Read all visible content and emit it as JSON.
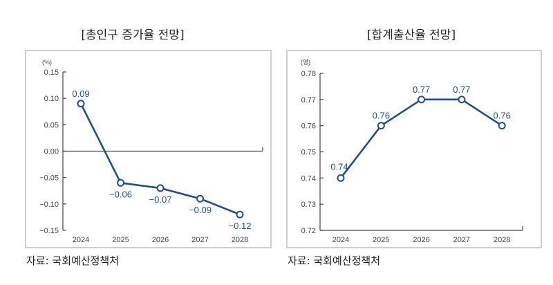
{
  "chart_data": [
    {
      "type": "line",
      "title": "[총인구 증가율 전망]",
      "unit_label": "(%)",
      "xlabel": "",
      "ylabel": "(%)",
      "categories": [
        "2024",
        "2025",
        "2026",
        "2027",
        "2028"
      ],
      "series": [
        {
          "name": "총인구 증가율",
          "values": [
            0.09,
            -0.06,
            -0.07,
            -0.09,
            -0.12
          ],
          "labels": [
            "0.09",
            "−0.06",
            "−0.07",
            "−0.09",
            "−0.12"
          ]
        }
      ],
      "ylim": [
        -0.15,
        0.15
      ],
      "yticks": [
        0.15,
        0.1,
        0.05,
        0.0,
        -0.05,
        -0.1,
        -0.15
      ],
      "ytick_labels": [
        "0.15",
        "0.10",
        "0.05",
        "0.00",
        "−0.05",
        "−0.10",
        "−0.15"
      ],
      "baseline": 0.0,
      "grid": false,
      "source": "자료: 국회예산정책처",
      "color": "#1f4e8c"
    },
    {
      "type": "line",
      "title": "[합계출산율 전망]",
      "unit_label": "(명)",
      "xlabel": "",
      "ylabel": "(명)",
      "categories": [
        "2024",
        "2025",
        "2026",
        "2027",
        "2028"
      ],
      "series": [
        {
          "name": "합계출산율",
          "values": [
            0.74,
            0.76,
            0.77,
            0.77,
            0.76
          ],
          "labels": [
            "0.74",
            "0.76",
            "0.77",
            "0.77",
            "0.76"
          ]
        }
      ],
      "ylim": [
        0.72,
        0.78
      ],
      "yticks": [
        0.78,
        0.77,
        0.76,
        0.75,
        0.74,
        0.73,
        0.72
      ],
      "ytick_labels": [
        "0.78",
        "0.77",
        "0.76",
        "0.75",
        "0.74",
        "0.73",
        "0.72"
      ],
      "baseline": 0.72,
      "grid": false,
      "source": "자료: 국회예산정책처",
      "color": "#1f4e8c"
    }
  ]
}
